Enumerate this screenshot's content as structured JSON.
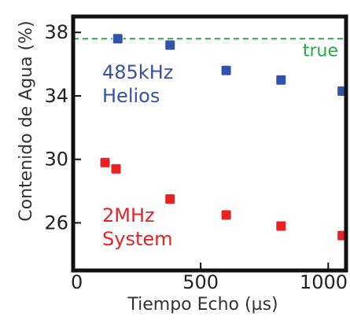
{
  "chart_data": {
    "type": "scatter",
    "xlabel": "Tiempo Echo (µs)",
    "ylabel": "Contenido de Agua (%)",
    "xlim": [
      0,
      1070
    ],
    "ylim": [
      23,
      39
    ],
    "x_ticks": [
      {
        "value": 0,
        "label": "0"
      },
      {
        "value": 500,
        "label": "500"
      },
      {
        "value": 1000,
        "label": "1000"
      }
    ],
    "y_ticks": [
      {
        "value": 26,
        "label": "26"
      },
      {
        "value": 30,
        "label": "30"
      },
      {
        "value": 34,
        "label": "34"
      },
      {
        "value": 38,
        "label": "38"
      }
    ],
    "reference_line": {
      "y": 37.6,
      "label": "true",
      "color": "#22aa44",
      "style": "dashed"
    },
    "series": [
      {
        "name": "485kHz Helios",
        "label_lines": [
          "485kHz",
          "Helios"
        ],
        "color": "#3452a8",
        "points": [
          {
            "x": 175,
            "y": 37.6
          },
          {
            "x": 380,
            "y": 37.2
          },
          {
            "x": 600,
            "y": 35.6
          },
          {
            "x": 815,
            "y": 35.0
          },
          {
            "x": 1055,
            "y": 34.3
          }
        ]
      },
      {
        "name": "2MHz System",
        "label_lines": [
          "2MHz",
          "System"
        ],
        "color": "#e62222",
        "points": [
          {
            "x": 125,
            "y": 29.8
          },
          {
            "x": 168,
            "y": 29.4
          },
          {
            "x": 380,
            "y": 27.5
          },
          {
            "x": 600,
            "y": 26.5
          },
          {
            "x": 815,
            "y": 25.8
          },
          {
            "x": 1055,
            "y": 25.2
          }
        ]
      }
    ]
  }
}
